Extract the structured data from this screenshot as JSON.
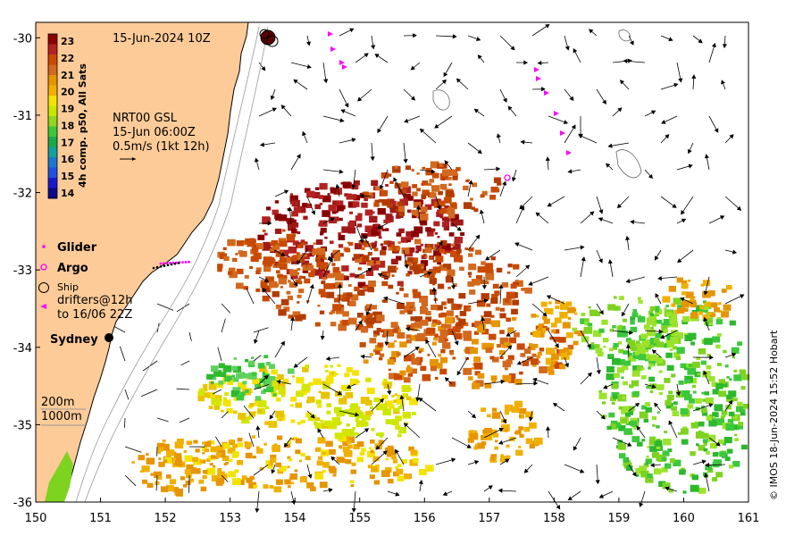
{
  "map": {
    "date_label": "15-Jun-2024 10Z",
    "lon_range": [
      150,
      161
    ],
    "lat_range": [
      -36,
      -29.8
    ],
    "lon_ticks": [
      150,
      151,
      152,
      153,
      154,
      155,
      156,
      157,
      158,
      159,
      160,
      161
    ],
    "lat_ticks": [
      -30,
      -31,
      -32,
      -33,
      -34,
      -35,
      -36
    ],
    "copyright": "© IMOS 18-Jun-2024 15:52 Hobart"
  },
  "colorbar": {
    "title": "4h comp. p50, All Sats",
    "ticks": [
      23,
      22,
      21,
      20,
      19,
      18,
      17,
      16,
      15,
      14
    ],
    "colors": [
      "#8b0000",
      "#b22222",
      "#c84a00",
      "#d2691e",
      "#e69500",
      "#f0b000",
      "#f4e300",
      "#c8e800",
      "#8fd61e",
      "#3cc83c",
      "#1aa84b",
      "#13a0a0",
      "#1a78d0",
      "#2050e0",
      "#1a1acd",
      "#0a0a8a"
    ]
  },
  "current_info": {
    "line1": "NRT00 GSL",
    "line2": "15-Jun 06:00Z",
    "line3": "0.5m/s (1kt 12h)"
  },
  "legend": {
    "glider": "Glider",
    "argo": "Argo",
    "ship": "Ship",
    "drifters_line1": "drifters@12h",
    "drifters_line2": "to 16/06 22Z"
  },
  "places": {
    "sydney": "Sydney"
  },
  "isobaths": {
    "line1": "200m",
    "line2": "1000m"
  },
  "colors": {
    "land": "#fdcb98",
    "magenta": "#ff00ff",
    "warm": "#8b0000"
  }
}
